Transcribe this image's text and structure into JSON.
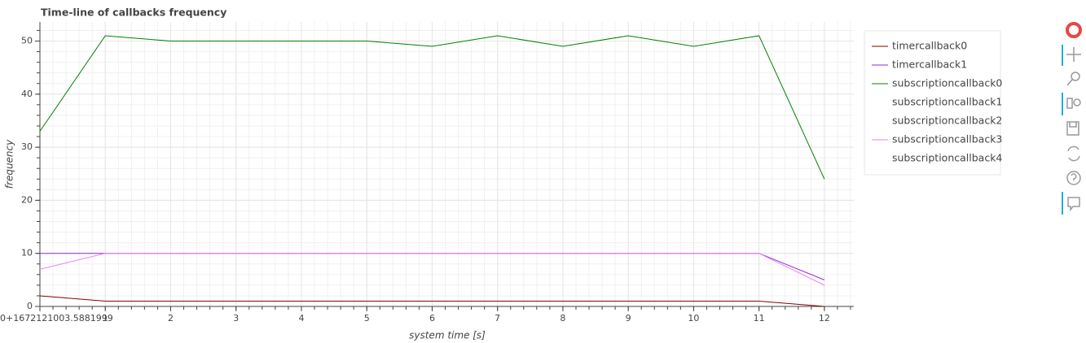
{
  "chart_data": {
    "type": "line",
    "title": "Time-line of callbacks frequency",
    "xlabel": "system time [s]",
    "ylabel": "frequency",
    "x": [
      0,
      1,
      2,
      3,
      4,
      5,
      6,
      7,
      8,
      9,
      10,
      11,
      12
    ],
    "xlim": [
      0,
      12.45
    ],
    "ylim": [
      0,
      53.6
    ],
    "xticks": [
      {
        "value": 0,
        "label": "0+1672121003.5881999"
      },
      1,
      2,
      3,
      4,
      5,
      6,
      7,
      8,
      9,
      10,
      11,
      12
    ],
    "yticks": [
      0,
      10,
      20,
      30,
      40,
      50
    ],
    "grid": true,
    "minor_grid": true,
    "legend": "top-right-outside",
    "series": [
      {
        "name": "timercallback0",
        "color": "#8b0000",
        "values": [
          2,
          1,
          1,
          1,
          1,
          1,
          1,
          1,
          1,
          1,
          1,
          1,
          0
        ]
      },
      {
        "name": "timercallback1",
        "color": "#8a2be2",
        "values": [
          10,
          10,
          10,
          10,
          10,
          10,
          10,
          10,
          10,
          10,
          10,
          10,
          5
        ]
      },
      {
        "name": "subscriptioncallback0",
        "color": "#008000",
        "values": [
          33,
          51,
          50,
          50,
          50,
          50,
          49,
          51,
          49,
          51,
          49,
          51,
          24
        ]
      },
      {
        "name": "subscriptioncallback1",
        "color": "#ffffff",
        "values": [
          null,
          null,
          null,
          null,
          null,
          null,
          null,
          null,
          null,
          null,
          null,
          null,
          null
        ]
      },
      {
        "name": "subscriptioncallback2",
        "color": "#ffffff",
        "values": [
          null,
          null,
          null,
          null,
          null,
          null,
          null,
          null,
          null,
          null,
          null,
          null,
          null
        ]
      },
      {
        "name": "subscriptioncallback3",
        "color": "#ee82ee",
        "values": [
          7,
          10,
          10,
          10,
          10,
          10,
          10,
          10,
          10,
          10,
          10,
          10,
          4
        ]
      },
      {
        "name": "subscriptioncallback4",
        "color": "#ffffff",
        "values": [
          null,
          null,
          null,
          null,
          null,
          null,
          null,
          null,
          null,
          null,
          null,
          null,
          null
        ]
      }
    ]
  }
}
